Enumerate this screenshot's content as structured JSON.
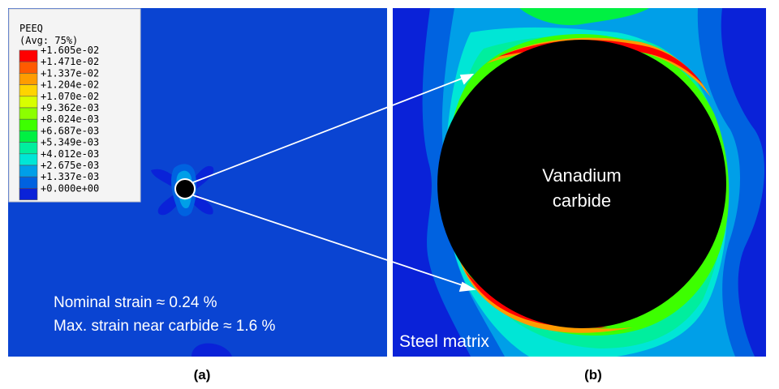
{
  "legend": {
    "title_line1": "PEEQ",
    "title_line2": "(Avg: 75%)",
    "entries": [
      {
        "label": "+1.605e-02",
        "color": "#ff0000"
      },
      {
        "label": "+1.471e-02",
        "color": "#ff5a00"
      },
      {
        "label": "+1.337e-02",
        "color": "#ff9c00"
      },
      {
        "label": "+1.204e-02",
        "color": "#ffd400"
      },
      {
        "label": "+1.070e-02",
        "color": "#d8ff00"
      },
      {
        "label": "+9.362e-03",
        "color": "#8cff00"
      },
      {
        "label": "+8.024e-03",
        "color": "#3dff00"
      },
      {
        "label": "+6.687e-03",
        "color": "#00f042"
      },
      {
        "label": "+5.349e-03",
        "color": "#00ee9e"
      },
      {
        "label": "+4.012e-03",
        "color": "#00e6d6"
      },
      {
        "label": "+2.675e-03",
        "color": "#009fe8"
      },
      {
        "label": "+1.337e-03",
        "color": "#0062e0"
      },
      {
        "label": "+0.000e+00",
        "color": "#0a22d8"
      }
    ]
  },
  "panel_a": {
    "label": "(a)",
    "annotation_line1": "Nominal strain ≈ 0.24 %",
    "annotation_line2": "Max. strain near carbide ≈ 1.6 %"
  },
  "panel_b": {
    "label": "(b)",
    "carbide_line1": "Vanadium",
    "carbide_line2": "carbide",
    "matrix_label": "Steel matrix"
  },
  "colors": {
    "base": "#0a44d2",
    "carbide": "#000000",
    "arrow": "#ffffff"
  }
}
